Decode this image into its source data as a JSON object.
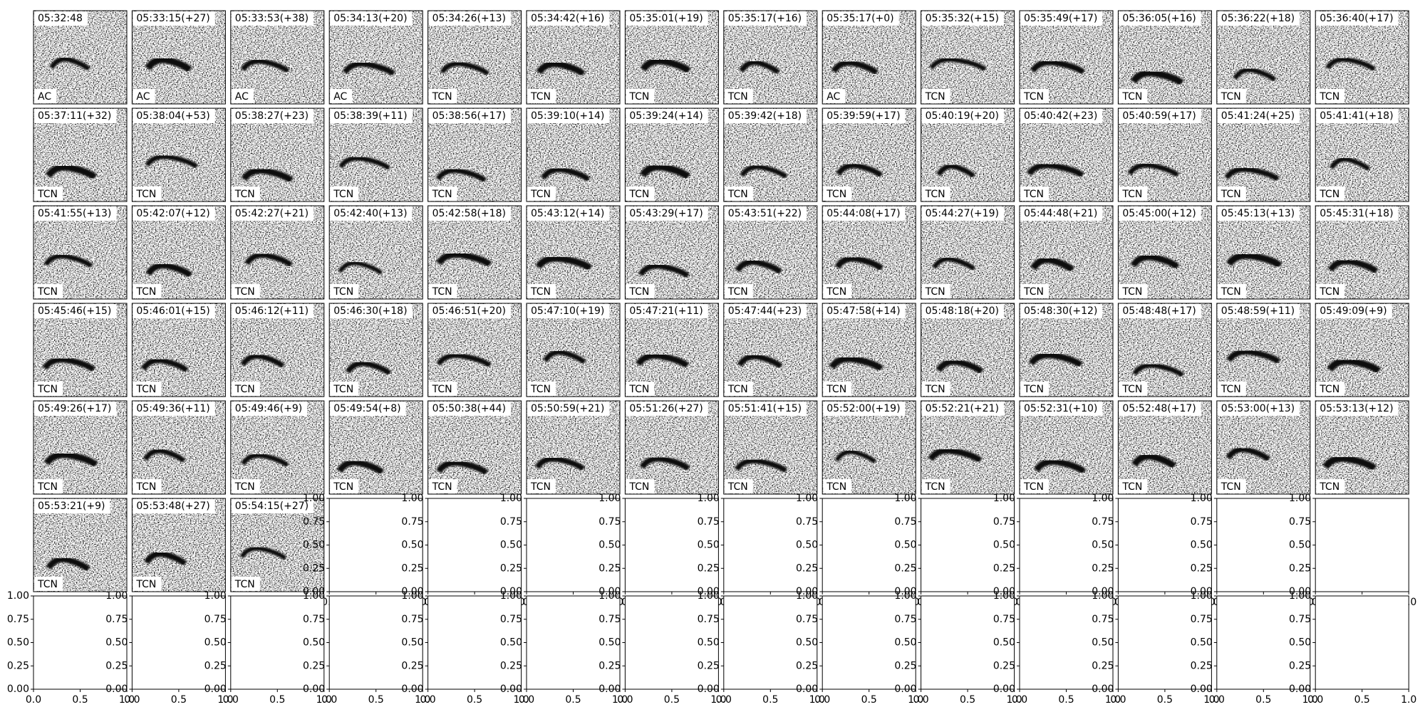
{
  "panels": [
    {
      "title": "05:32:48",
      "label": "AC"
    },
    {
      "title": "05:33:15(+27)",
      "label": "AC"
    },
    {
      "title": "05:33:53(+38)",
      "label": "AC"
    },
    {
      "title": "05:34:13(+20)",
      "label": "AC"
    },
    {
      "title": "05:34:26(+13)",
      "label": "TCN"
    },
    {
      "title": "05:34:42(+16)",
      "label": "TCN"
    },
    {
      "title": "05:35:01(+19)",
      "label": "TCN"
    },
    {
      "title": "05:35:17(+16)",
      "label": "TCN"
    },
    {
      "title": "05:35:17(+0)",
      "label": "AC"
    },
    {
      "title": "05:35:32(+15)",
      "label": "TCN"
    },
    {
      "title": "05:35:49(+17)",
      "label": "TCN"
    },
    {
      "title": "05:36:05(+16)",
      "label": "TCN"
    },
    {
      "title": "05:36:22(+18)",
      "label": "TCN"
    },
    {
      "title": "05:36:40(+17)",
      "label": "TCN"
    },
    {
      "title": "05:37:11(+32)",
      "label": "TCN"
    },
    {
      "title": "05:38:04(+53)",
      "label": "TCN"
    },
    {
      "title": "05:38:27(+23)",
      "label": "TCN"
    },
    {
      "title": "05:38:39(+11)",
      "label": "TCN"
    },
    {
      "title": "05:38:56(+17)",
      "label": "TCN"
    },
    {
      "title": "05:39:10(+14)",
      "label": "TCN"
    },
    {
      "title": "05:39:24(+14)",
      "label": "TCN"
    },
    {
      "title": "05:39:42(+18)",
      "label": "TCN"
    },
    {
      "title": "05:39:59(+17)",
      "label": "TCN"
    },
    {
      "title": "05:40:19(+20)",
      "label": "TCN"
    },
    {
      "title": "05:40:42(+23)",
      "label": "TCN"
    },
    {
      "title": "05:40:59(+17)",
      "label": "TCN"
    },
    {
      "title": "05:41:24(+25)",
      "label": "TCN"
    },
    {
      "title": "05:41:41(+18)",
      "label": "TCN"
    },
    {
      "title": "05:41:55(+13)",
      "label": "TCN"
    },
    {
      "title": "05:42:07(+12)",
      "label": "TCN"
    },
    {
      "title": "05:42:27(+21)",
      "label": "TCN"
    },
    {
      "title": "05:42:40(+13)",
      "label": "TCN"
    },
    {
      "title": "05:42:58(+18)",
      "label": "TCN"
    },
    {
      "title": "05:43:12(+14)",
      "label": "TCN"
    },
    {
      "title": "05:43:29(+17)",
      "label": "TCN"
    },
    {
      "title": "05:43:51(+22)",
      "label": "TCN"
    },
    {
      "title": "05:44:08(+17)",
      "label": "TCN"
    },
    {
      "title": "05:44:27(+19)",
      "label": "TCN"
    },
    {
      "title": "05:44:48(+21)",
      "label": "TCN"
    },
    {
      "title": "05:45:00(+12)",
      "label": "TCN"
    },
    {
      "title": "05:45:13(+13)",
      "label": "TCN"
    },
    {
      "title": "05:45:31(+18)",
      "label": "TCN"
    },
    {
      "title": "05:45:46(+15)",
      "label": "TCN"
    },
    {
      "title": "05:46:01(+15)",
      "label": "TCN"
    },
    {
      "title": "05:46:12(+11)",
      "label": "TCN"
    },
    {
      "title": "05:46:30(+18)",
      "label": "TCN"
    },
    {
      "title": "05:46:51(+20)",
      "label": "TCN"
    },
    {
      "title": "05:47:10(+19)",
      "label": "TCN"
    },
    {
      "title": "05:47:21(+11)",
      "label": "TCN"
    },
    {
      "title": "05:47:44(+23)",
      "label": "TCN"
    },
    {
      "title": "05:47:58(+14)",
      "label": "TCN"
    },
    {
      "title": "05:48:18(+20)",
      "label": "TCN"
    },
    {
      "title": "05:48:30(+12)",
      "label": "TCN"
    },
    {
      "title": "05:48:48(+17)",
      "label": "TCN"
    },
    {
      "title": "05:48:59(+11)",
      "label": "TCN"
    },
    {
      "title": "05:49:09(+9)",
      "label": "TCN"
    },
    {
      "title": "05:49:26(+17)",
      "label": "TCN"
    },
    {
      "title": "05:49:36(+11)",
      "label": "TCN"
    },
    {
      "title": "05:49:46(+9)",
      "label": "TCN"
    },
    {
      "title": "05:49:54(+8)",
      "label": "TCN"
    },
    {
      "title": "05:50:38(+44)",
      "label": "TCN"
    },
    {
      "title": "05:50:59(+21)",
      "label": "TCN"
    },
    {
      "title": "05:51:26(+27)",
      "label": "TCN"
    },
    {
      "title": "05:51:41(+15)",
      "label": "TCN"
    },
    {
      "title": "05:52:00(+19)",
      "label": "TCN"
    },
    {
      "title": "05:52:21(+21)",
      "label": "TCN"
    },
    {
      "title": "05:52:31(+10)",
      "label": "TCN"
    },
    {
      "title": "05:52:48(+17)",
      "label": "TCN"
    },
    {
      "title": "05:53:00(+13)",
      "label": "TCN"
    },
    {
      "title": "05:53:13(+12)",
      "label": "TCN"
    },
    {
      "title": "05:53:21(+9)",
      "label": "TCN"
    },
    {
      "title": "05:53:48(+27)",
      "label": "TCN"
    },
    {
      "title": "05:54:15(+27)",
      "label": "TCN"
    }
  ],
  "empty_axes": {
    "xlim": [
      0,
      1
    ],
    "ylim": [
      0,
      1
    ],
    "xticks": [
      {
        "value": 0,
        "label": "0.0"
      },
      0.5,
      {
        "value": 1,
        "label": "1.0"
      }
    ],
    "yticks": [
      {
        "value": 0,
        "label": "0.00"
      },
      0.25,
      {
        "value": 0.5,
        "label": "0.50"
      },
      0.75,
      {
        "value": 1,
        "label": "1.00"
      }
    ]
  }
}
